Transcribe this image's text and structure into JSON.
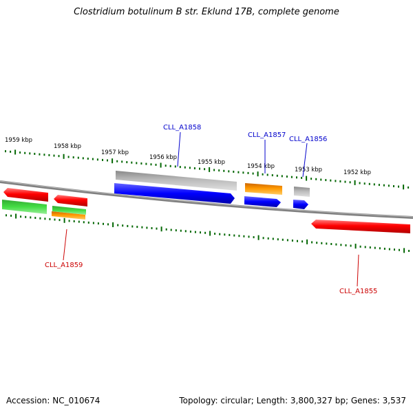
{
  "title": "Clostridium botulinum B str. Eklund 17B, complete genome",
  "footer": {
    "accession": "Accession: NC_010674",
    "summary": "Topology: circular; Length: 3,800,327 bp; Genes: 3,537"
  },
  "scale_labels": [
    "1959 kbp",
    "1958 kbp",
    "1957 kbp",
    "1956 kbp",
    "1955 kbp",
    "1954 kbp",
    "1953 kbp",
    "1952 kbp"
  ],
  "gene_labels": {
    "top": [
      "CLL_A1858",
      "CLL_A1857",
      "CLL_A1856"
    ],
    "bottom": [
      "CLL_A1859",
      "CLL_A1855"
    ]
  },
  "colors": {
    "backbone": "#808080",
    "red": "#ff0000",
    "green": "#33cc33",
    "orange": "#ff8800",
    "grey": "#bbbbbb",
    "blue": "#0000ff",
    "tick": "#006600"
  }
}
